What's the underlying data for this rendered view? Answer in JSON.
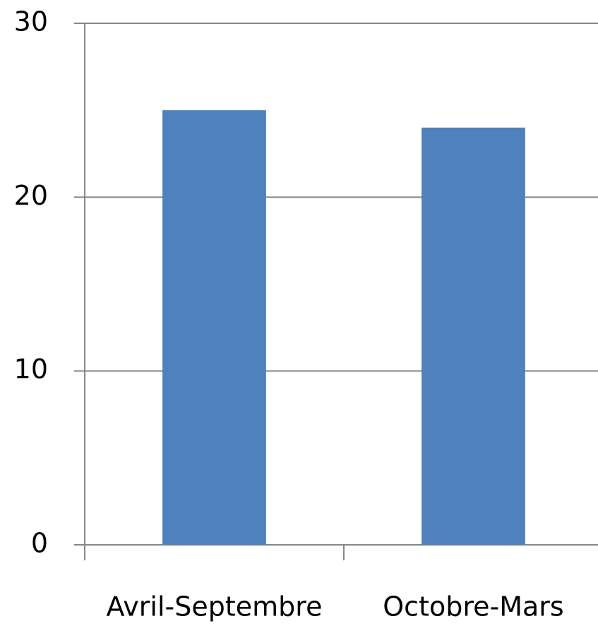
{
  "chart_data": {
    "type": "bar",
    "categories": [
      "Avril-Septembre",
      "Octobre-Mars"
    ],
    "values": [
      25,
      24
    ],
    "color": "#4f81bd",
    "ylim": [
      0,
      30
    ],
    "yticks": [
      0,
      10,
      20,
      30
    ],
    "grid": true
  }
}
